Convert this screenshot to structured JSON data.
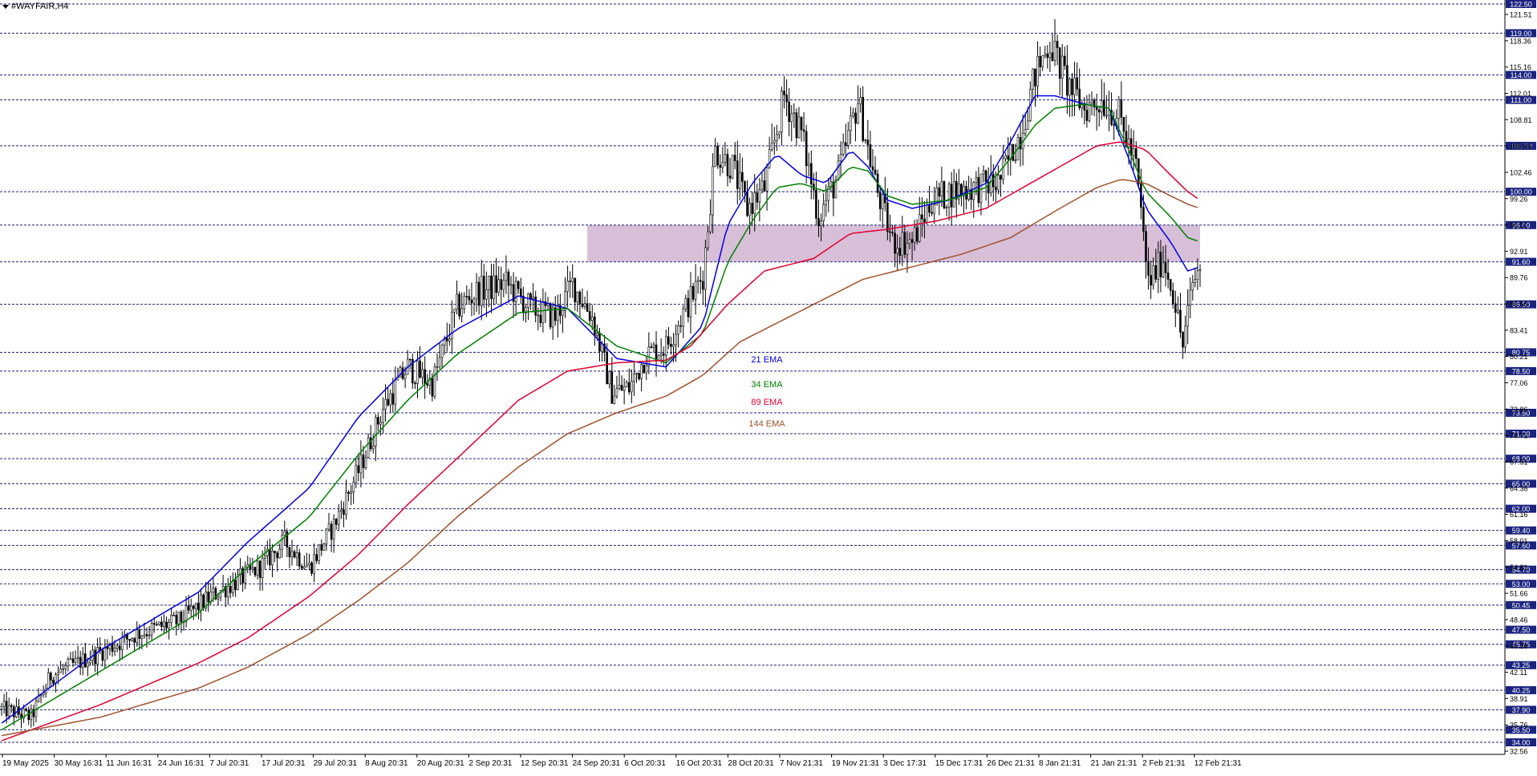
{
  "window": {
    "symbol_title": "#WAYFAIR,H4",
    "menu_icon": "triangle-down-icon"
  },
  "colors": {
    "ema21": "#0000e0",
    "ema34": "#008000",
    "ema89": "#e00030",
    "ema144": "#a0522d",
    "zone": "#d8bfd8",
    "level_line": "#1a237e",
    "candle": "#000000",
    "price_box": "#1a237e"
  },
  "chart_data": {
    "type": "candlestick",
    "ylim": [
      32.56,
      122.5
    ],
    "x_tick_labels": [
      "19 May 2025",
      "30 May 16:31",
      "11 Jun 16:31",
      "24 Jun 16:31",
      "7 Jul 20:31",
      "17 Jul 20:31",
      "29 Jul 20:31",
      "8 Aug 20:31",
      "20 Aug 20:31",
      "2 Sep 20:31",
      "12 Sep 20:31",
      "24 Sep 20:31",
      "6 Oct 20:31",
      "16 Oct 20:31",
      "28 Oct 20:31",
      "7 Nov 21:31",
      "19 Nov 21:31",
      "3 Dec 17:31",
      "15 Dec 17:31",
      "26 Dec 21:31",
      "8 Jan 21:31",
      "21 Jan 21:31",
      "2 Feb 21:31",
      "12 Feb 21:31"
    ],
    "y_scale_labels": [
      "121.51",
      "118.36",
      "115.16",
      "112.01",
      "108.81",
      "105.66",
      "102.46",
      "99.26",
      "96.11",
      "92.91",
      "89.76",
      "86.56",
      "83.41",
      "80.21",
      "77.06",
      "73.86",
      "70.71",
      "67.51",
      "64.36",
      "61.16",
      "58.01",
      "54.81",
      "51.66",
      "48.46",
      "45.26",
      "42.11",
      "38.91",
      "35.76",
      "32.56"
    ],
    "horizontal_levels": [
      "122.50",
      "119.00",
      "114.00",
      "111.00",
      "105.50",
      "100.00",
      "96.00",
      "91.60",
      "86.50",
      "80.75",
      "78.50",
      "73.50",
      "71.00",
      "68.00",
      "65.00",
      "62.00",
      "59.40",
      "57.60",
      "54.70",
      "53.00",
      "50.45",
      "47.50",
      "45.75",
      "43.25",
      "40.25",
      "37.90",
      "35.50",
      "34.00"
    ],
    "zone": {
      "low": 91.6,
      "high": 96.0
    },
    "close_path": [
      [
        0,
        38.0
      ],
      [
        12,
        37.0
      ],
      [
        20,
        42.0
      ],
      [
        40,
        44.8
      ],
      [
        55,
        47.0
      ],
      [
        72,
        48.5
      ],
      [
        85,
        51.5
      ],
      [
        105,
        55.0
      ],
      [
        115,
        58.0
      ],
      [
        125,
        55.0
      ],
      [
        135,
        60.0
      ],
      [
        145,
        66.5
      ],
      [
        155,
        74.0
      ],
      [
        165,
        79.0
      ],
      [
        175,
        77.0
      ],
      [
        185,
        86.0
      ],
      [
        193,
        88.0
      ],
      [
        205,
        89.0
      ],
      [
        215,
        86.0
      ],
      [
        225,
        85.0
      ],
      [
        232,
        89.0
      ],
      [
        240,
        85.0
      ],
      [
        248,
        76.0
      ],
      [
        255,
        76.5
      ],
      [
        262,
        80.5
      ],
      [
        270,
        81.5
      ],
      [
        278,
        86.0
      ],
      [
        285,
        90.0
      ],
      [
        290,
        105.0
      ],
      [
        297,
        103.0
      ],
      [
        303,
        98.0
      ],
      [
        310,
        100.5
      ],
      [
        318,
        111.5
      ],
      [
        325,
        107.0
      ],
      [
        332,
        97.0
      ],
      [
        340,
        102.0
      ],
      [
        348,
        111.0
      ],
      [
        355,
        101.0
      ],
      [
        362,
        94.0
      ],
      [
        370,
        94.0
      ],
      [
        378,
        99.0
      ],
      [
        386,
        100.0
      ],
      [
        395,
        100.5
      ],
      [
        405,
        101.0
      ],
      [
        414,
        107.0
      ],
      [
        420,
        114.0
      ],
      [
        426,
        118.0
      ],
      [
        433,
        113.0
      ],
      [
        440,
        110.0
      ],
      [
        447,
        111.0
      ],
      [
        454,
        109.0
      ],
      [
        461,
        103.0
      ],
      [
        466,
        89.0
      ],
      [
        472,
        92.0
      ],
      [
        476,
        88.0
      ],
      [
        480,
        81.5
      ],
      [
        484,
        89.0
      ],
      [
        487,
        91.0
      ]
    ],
    "series": [
      {
        "name": "21 EMA",
        "values": [
          [
            0,
            36.3
          ],
          [
            40,
            45.0
          ],
          [
            80,
            52.0
          ],
          [
            100,
            58.0
          ],
          [
            125,
            64.5
          ],
          [
            145,
            73.0
          ],
          [
            165,
            79.0
          ],
          [
            185,
            83.5
          ],
          [
            210,
            87.5
          ],
          [
            230,
            86.0
          ],
          [
            250,
            80.0
          ],
          [
            270,
            79.0
          ],
          [
            285,
            84.0
          ],
          [
            295,
            96.0
          ],
          [
            305,
            101.0
          ],
          [
            315,
            104.5
          ],
          [
            325,
            102.0
          ],
          [
            335,
            101.0
          ],
          [
            345,
            105.0
          ],
          [
            352,
            103.0
          ],
          [
            360,
            99.0
          ],
          [
            370,
            98.0
          ],
          [
            385,
            99.0
          ],
          [
            400,
            101.0
          ],
          [
            410,
            106.0
          ],
          [
            420,
            111.5
          ],
          [
            428,
            111.5
          ],
          [
            440,
            110.5
          ],
          [
            450,
            110.0
          ],
          [
            458,
            104.0
          ],
          [
            465,
            98.0
          ],
          [
            475,
            94.0
          ],
          [
            482,
            90.5
          ],
          [
            487,
            91.0
          ]
        ]
      },
      {
        "name": "34 EMA",
        "values": [
          [
            0,
            35.5
          ],
          [
            40,
            42.5
          ],
          [
            80,
            49.5
          ],
          [
            100,
            55.0
          ],
          [
            125,
            61.0
          ],
          [
            145,
            68.5
          ],
          [
            165,
            75.0
          ],
          [
            185,
            80.5
          ],
          [
            210,
            85.5
          ],
          [
            230,
            86.0
          ],
          [
            250,
            81.5
          ],
          [
            270,
            79.5
          ],
          [
            285,
            83.0
          ],
          [
            295,
            91.5
          ],
          [
            305,
            96.5
          ],
          [
            315,
            100.5
          ],
          [
            325,
            101.0
          ],
          [
            335,
            100.0
          ],
          [
            345,
            103.0
          ],
          [
            352,
            102.5
          ],
          [
            360,
            99.5
          ],
          [
            370,
            98.5
          ],
          [
            385,
            99.0
          ],
          [
            400,
            100.5
          ],
          [
            410,
            104.0
          ],
          [
            420,
            108.0
          ],
          [
            428,
            110.0
          ],
          [
            440,
            110.5
          ],
          [
            450,
            110.0
          ],
          [
            458,
            105.0
          ],
          [
            465,
            100.0
          ],
          [
            475,
            97.0
          ],
          [
            482,
            94.5
          ],
          [
            487,
            94.0
          ]
        ]
      },
      {
        "name": "89 EMA",
        "values": [
          [
            0,
            34.2
          ],
          [
            40,
            38.5
          ],
          [
            80,
            43.5
          ],
          [
            100,
            46.5
          ],
          [
            125,
            51.5
          ],
          [
            145,
            56.5
          ],
          [
            165,
            62.5
          ],
          [
            185,
            68.0
          ],
          [
            210,
            75.0
          ],
          [
            230,
            78.5
          ],
          [
            250,
            79.5
          ],
          [
            270,
            79.8
          ],
          [
            280,
            81.5
          ],
          [
            295,
            86.5
          ],
          [
            310,
            90.5
          ],
          [
            330,
            92.0
          ],
          [
            345,
            95.0
          ],
          [
            360,
            95.5
          ],
          [
            380,
            96.5
          ],
          [
            400,
            98.0
          ],
          [
            415,
            100.5
          ],
          [
            430,
            103.0
          ],
          [
            445,
            105.5
          ],
          [
            455,
            106.0
          ],
          [
            465,
            105.0
          ],
          [
            475,
            102.0
          ],
          [
            482,
            100.0
          ],
          [
            487,
            99.0
          ]
        ]
      },
      {
        "name": "144 EMA",
        "values": [
          [
            0,
            34.8
          ],
          [
            40,
            37.0
          ],
          [
            80,
            40.5
          ],
          [
            100,
            43.0
          ],
          [
            125,
            47.0
          ],
          [
            145,
            51.0
          ],
          [
            165,
            55.5
          ],
          [
            185,
            61.0
          ],
          [
            210,
            67.0
          ],
          [
            230,
            71.0
          ],
          [
            250,
            73.5
          ],
          [
            270,
            75.5
          ],
          [
            285,
            78.0
          ],
          [
            300,
            82.0
          ],
          [
            330,
            86.5
          ],
          [
            350,
            89.5
          ],
          [
            370,
            91.0
          ],
          [
            390,
            92.5
          ],
          [
            410,
            94.5
          ],
          [
            430,
            98.0
          ],
          [
            445,
            100.5
          ],
          [
            455,
            101.5
          ],
          [
            465,
            101.0
          ],
          [
            475,
            99.5
          ],
          [
            482,
            98.5
          ],
          [
            487,
            98.0
          ]
        ]
      }
    ],
    "legend_labels": [
      "21 EMA",
      "34 EMA",
      "89 EMA",
      "144 EMA"
    ]
  }
}
